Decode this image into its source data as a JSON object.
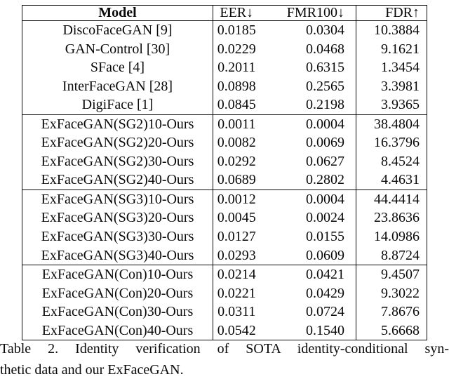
{
  "table": {
    "headers": {
      "model": "Model",
      "eer": "EER↓",
      "fmr100": "FMR100↓",
      "fdr": "FDR↑"
    },
    "rows": [
      {
        "model": "DiscoFaceGAN [9]",
        "eer": "0.0185",
        "fmr100": "0.0304",
        "fdr": "10.3884"
      },
      {
        "model": "GAN-Control [30]",
        "eer": "0.0229",
        "fmr100": "0.0468",
        "fdr": "9.1621"
      },
      {
        "model": "SFace [4]",
        "eer": "0.2011",
        "fmr100": "0.6315",
        "fdr": "1.3454"
      },
      {
        "model": "InterFaceGAN [28]",
        "eer": "0.0898",
        "fmr100": "0.2565",
        "fdr": "3.3981"
      },
      {
        "model": "DigiFace [1]",
        "eer": "0.0845",
        "fmr100": "0.2198",
        "fdr": "3.9365"
      },
      {
        "model": "ExFaceGAN(SG2)10-Ours",
        "eer": "0.0011",
        "fmr100": "0.0004",
        "fdr": "38.4804"
      },
      {
        "model": "ExFaceGAN(SG2)20-Ours",
        "eer": "0.0082",
        "fmr100": "0.0069",
        "fdr": "16.3796"
      },
      {
        "model": "ExFaceGAN(SG2)30-Ours",
        "eer": "0.0292",
        "fmr100": "0.0627",
        "fdr": "8.4524"
      },
      {
        "model": "ExFaceGAN(SG2)40-Ours",
        "eer": "0.0689",
        "fmr100": "0.2802",
        "fdr": "4.4631"
      },
      {
        "model": "ExFaceGAN(SG3)10-Ours",
        "eer": "0.0012",
        "fmr100": "0.0004",
        "fdr": "44.4414"
      },
      {
        "model": "ExFaceGAN(SG3)20-Ours",
        "eer": "0.0045",
        "fmr100": "0.0024",
        "fdr": "23.8636"
      },
      {
        "model": "ExFaceGAN(SG3)30-Ours",
        "eer": "0.0127",
        "fmr100": "0.0155",
        "fdr": "14.0986"
      },
      {
        "model": "ExFaceGAN(SG3)40-Ours",
        "eer": "0.0293",
        "fmr100": "0.0609",
        "fdr": "8.8724"
      },
      {
        "model": "ExFaceGAN(Con)10-Ours",
        "eer": "0.0214",
        "fmr100": "0.0421",
        "fdr": "9.4507"
      },
      {
        "model": "ExFaceGAN(Con)20-Ours",
        "eer": "0.0221",
        "fmr100": "0.0429",
        "fdr": "9.3022"
      },
      {
        "model": "ExFaceGAN(Con)30-Ours",
        "eer": "0.0311",
        "fmr100": "0.0724",
        "fdr": "7.8676"
      },
      {
        "model": "ExFaceGAN(Con)40-Ours",
        "eer": "0.0542",
        "fmr100": "0.1540",
        "fdr": "5.6668"
      }
    ]
  },
  "caption": {
    "line1": "Table 2. Identity verification of SOTA identity-conditional syn-",
    "line2": "thetic data and our ExFaceGAN."
  }
}
